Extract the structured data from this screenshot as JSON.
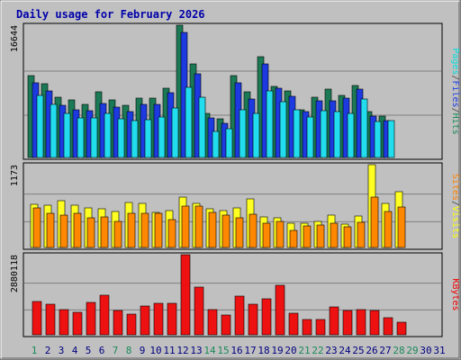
{
  "chart_data": {
    "type": "bar",
    "title": "Daily usage for February 2026",
    "categories": [
      "1",
      "2",
      "3",
      "4",
      "5",
      "6",
      "7",
      "8",
      "9",
      "10",
      "11",
      "12",
      "13",
      "14",
      "15",
      "16",
      "17",
      "18",
      "19",
      "20",
      "21",
      "22",
      "23",
      "24",
      "25",
      "26",
      "27",
      "28",
      "29",
      "30",
      "31"
    ],
    "weekend_days": [
      "1",
      "7",
      "8",
      "14",
      "15",
      "21",
      "22",
      "28",
      "29"
    ],
    "panels": [
      {
        "id": "top",
        "ylabel_parts": [
          "Pages",
          "/",
          "Files",
          "/",
          "Hits"
        ],
        "ylabel_colors": [
          "#00dddd",
          "#444444",
          "#1c3ae0",
          "#444444",
          "#1a8a5a"
        ],
        "max_label": "16644",
        "ymax": 16644,
        "series": [
          {
            "name": "Hits",
            "color": "#1b7a55",
            "values": [
              10280,
              9300,
              7630,
              7230,
              6730,
              8230,
              7230,
              6530,
              7430,
              7430,
              8730,
              16640,
              11820,
              5600,
              4900,
              10280,
              8230,
              12700,
              8930,
              8330,
              6030,
              7630,
              8630,
              7830,
              9080,
              5800,
              5200,
              null,
              null,
              null,
              null
            ]
          },
          {
            "name": "Files",
            "color": "#1c3ae0",
            "values": [
              9430,
              8330,
              6530,
              6030,
              5900,
              6830,
              6330,
              5830,
              6630,
              6630,
              8130,
              15740,
              10580,
              4960,
              4300,
              9430,
              7400,
              11760,
              8730,
              7730,
              5730,
              7080,
              7080,
              7430,
              8580,
              5200,
              4650,
              null,
              null,
              null,
              null
            ]
          },
          {
            "name": "Pages",
            "color": "#22ddee",
            "values": [
              7830,
              6730,
              5530,
              5030,
              5030,
              5530,
              4840,
              4610,
              4700,
              5130,
              6190,
              8830,
              7540,
              3280,
              3640,
              6030,
              5560,
              8430,
              7070,
              6030,
              5130,
              5900,
              5800,
              5530,
              7330,
              4490,
              4640,
              null,
              null,
              null,
              null
            ]
          }
        ]
      },
      {
        "id": "middle",
        "ylabel_parts": [
          "Sites",
          "/",
          "Visits"
        ],
        "ylabel_colors": [
          "#ff8000",
          "#444444",
          "#ffff00"
        ],
        "max_label": "1173",
        "ymax": 1173,
        "series": [
          {
            "name": "Visits",
            "color": "#ffff22",
            "values": [
              612,
              599,
              662,
              593,
              564,
              550,
              507,
              637,
              625,
              499,
              525,
              708,
              624,
              547,
              529,
              560,
              688,
              432,
              423,
              341,
              338,
              369,
              460,
              337,
              445,
              1173,
              622,
              788,
              null,
              null,
              null
            ]
          },
          {
            "name": "Sites",
            "color": "#ff8800",
            "values": [
              556,
              488,
              455,
              486,
              417,
              437,
              373,
              485,
              480,
              488,
              399,
              592,
              588,
              492,
              465,
              425,
              470,
              343,
              367,
              243,
              311,
              320,
              342,
              288,
              361,
              713,
              510,
              569,
              null,
              null,
              null
            ]
          }
        ]
      },
      {
        "id": "bottom",
        "ylabel_parts": [
          "KBytes"
        ],
        "ylabel_colors": [
          "#ee0000"
        ],
        "max_label": "2880118",
        "ymax": 2880118,
        "series": [
          {
            "name": "KBytes",
            "color": "#ee1111",
            "values": [
              1200000,
              1090000,
              900000,
              800000,
              1150000,
              1420000,
              860000,
              740000,
              1040000,
              1120000,
              1130000,
              2880118,
              1720000,
              900000,
              720000,
              1380000,
              1100000,
              1280000,
              1780000,
              780000,
              540000,
              540000,
              1000000,
              860000,
              900000,
              880000,
              620000,
              460000,
              null,
              null,
              null
            ]
          }
        ]
      }
    ]
  }
}
